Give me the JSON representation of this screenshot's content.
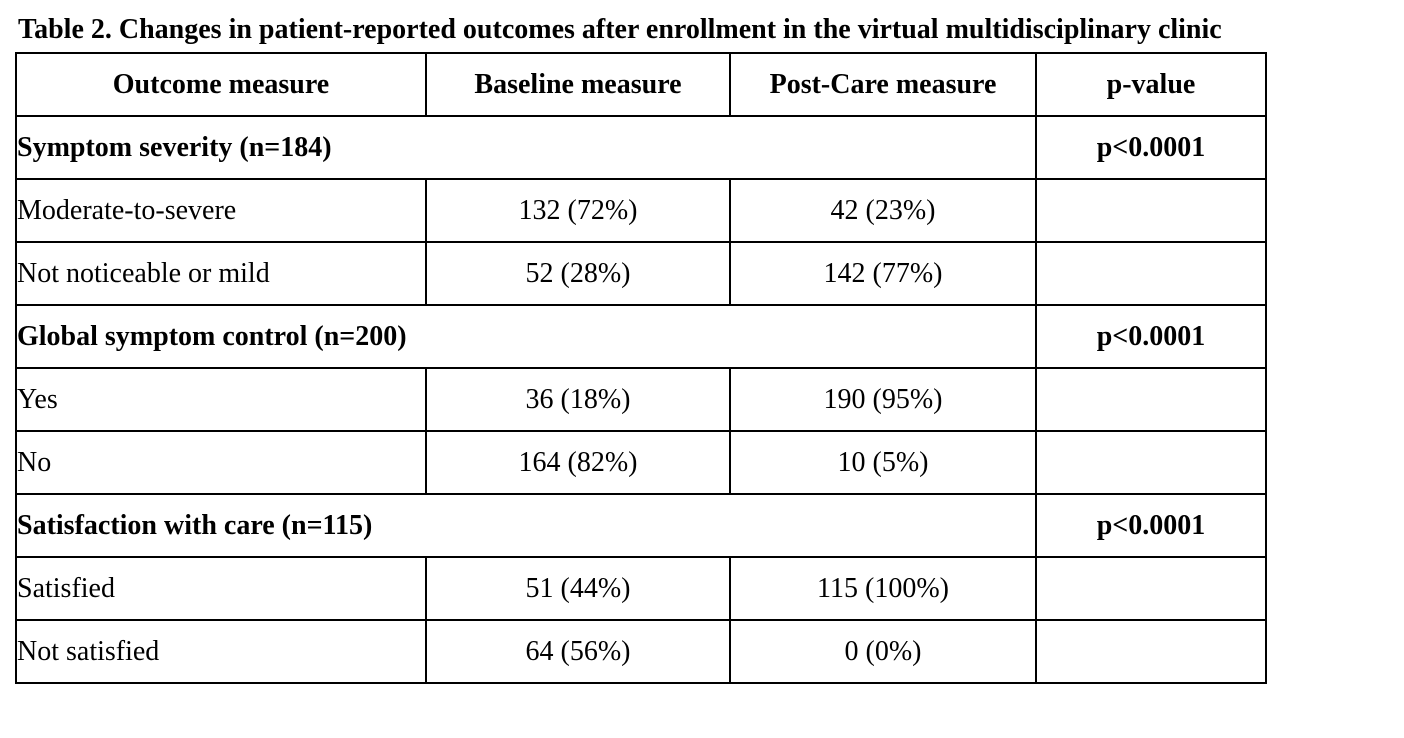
{
  "caption": "Table 2. Changes in patient-reported outcomes after enrollment in the virtual multidisciplinary clinic",
  "headers": {
    "outcome": "Outcome measure",
    "baseline": "Baseline measure",
    "post": "Post-Care measure",
    "pvalue": "p-value"
  },
  "groups": [
    {
      "label": "Symptom severity (n=184)",
      "pvalue": "p<0.0001",
      "rows": [
        {
          "label": "Moderate-to-severe",
          "baseline": "132 (72%)",
          "post": "42 (23%)"
        },
        {
          "label": "Not noticeable or mild",
          "baseline": "52 (28%)",
          "post": "142 (77%)"
        }
      ]
    },
    {
      "label": "Global symptom control (n=200)",
      "pvalue": "p<0.0001",
      "rows": [
        {
          "label": "Yes",
          "baseline": "36 (18%)",
          "post": "190 (95%)"
        },
        {
          "label": "No",
          "baseline": "164 (82%)",
          "post": "10 (5%)"
        }
      ]
    },
    {
      "label": "Satisfaction with care (n=115)",
      "pvalue": "p<0.0001",
      "rows": [
        {
          "label": "Satisfied",
          "baseline": "51 (44%)",
          "post": "115 (100%)"
        },
        {
          "label": "Not satisfied",
          "baseline": "64 (56%)",
          "post": "0 (0%)"
        }
      ]
    }
  ]
}
